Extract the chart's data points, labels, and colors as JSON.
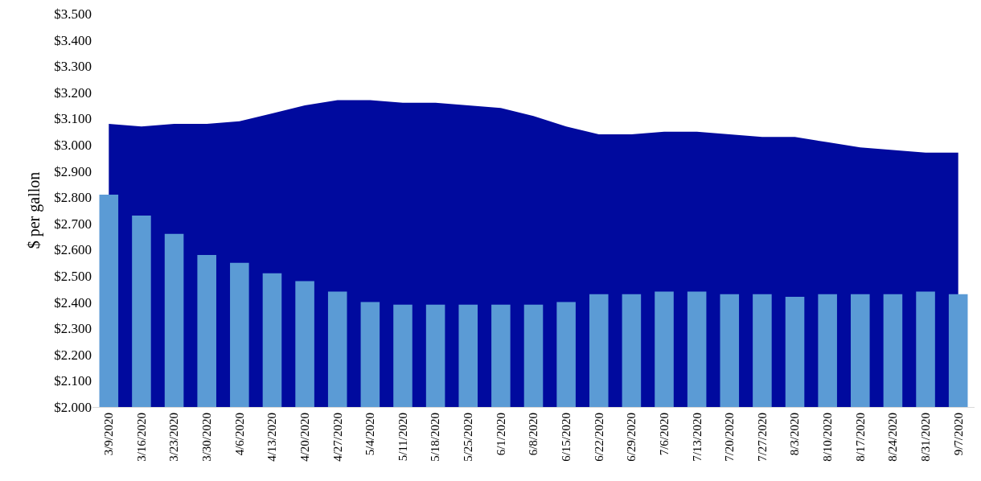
{
  "chart_data": {
    "type": "area",
    "ylabel": "$ per gallon",
    "categories": [
      "3/9/2020",
      "3/16/2020",
      "3/23/2020",
      "3/30/2020",
      "4/6/2020",
      "4/13/2020",
      "4/20/2020",
      "4/27/2020",
      "5/4/2020",
      "5/11/2020",
      "5/18/2020",
      "5/25/2020",
      "6/1/2020",
      "6/8/2020",
      "6/15/2020",
      "6/22/2020",
      "6/29/2020",
      "7/6/2020",
      "7/13/2020",
      "7/20/2020",
      "7/27/2020",
      "8/3/2020",
      "8/10/2020",
      "8/17/2020",
      "8/24/2020",
      "8/31/2020",
      "9/7/2020"
    ],
    "series": [
      {
        "color": "#000a9e",
        "values": [
          3.08,
          3.07,
          3.08,
          3.08,
          3.09,
          3.12,
          3.15,
          3.17,
          3.17,
          3.16,
          3.16,
          3.15,
          3.14,
          3.11,
          3.07,
          3.04,
          3.04,
          3.05,
          3.05,
          3.04,
          3.03,
          3.03,
          3.01,
          2.99,
          2.98,
          2.97,
          2.97
        ]
      },
      {
        "type": "bar",
        "color": "#5b9bd5",
        "values": [
          2.81,
          2.73,
          2.66,
          2.58,
          2.55,
          2.51,
          2.48,
          2.44,
          2.4,
          2.39,
          2.39,
          2.39,
          2.39,
          2.39,
          2.4,
          2.43,
          2.43,
          2.44,
          2.44,
          2.43,
          2.43,
          2.42,
          2.43,
          2.43,
          2.43,
          2.44,
          2.43
        ]
      }
    ],
    "ylim": [
      2.0,
      3.5
    ],
    "yticks": [
      {
        "value": 2.0,
        "label": "$2.000"
      },
      {
        "value": 2.1,
        "label": "$2.100"
      },
      {
        "value": 2.2,
        "label": "$2.200"
      },
      {
        "value": 2.3,
        "label": "$2.300"
      },
      {
        "value": 2.4,
        "label": "$2.400"
      },
      {
        "value": 2.5,
        "label": "$2.500"
      },
      {
        "value": 2.6,
        "label": "$2.600"
      },
      {
        "value": 2.7,
        "label": "$2.700"
      },
      {
        "value": 2.8,
        "label": "$2.800"
      },
      {
        "value": 2.9,
        "label": "$2.900"
      },
      {
        "value": 3.0,
        "label": "$3.000"
      },
      {
        "value": 3.1,
        "label": "$3.100"
      },
      {
        "value": 3.2,
        "label": "$3.200"
      },
      {
        "value": 3.3,
        "label": "$3.300"
      },
      {
        "value": 3.4,
        "label": "$3.400"
      },
      {
        "value": 3.5,
        "label": "$3.500"
      }
    ],
    "grid": false,
    "legend": false
  }
}
